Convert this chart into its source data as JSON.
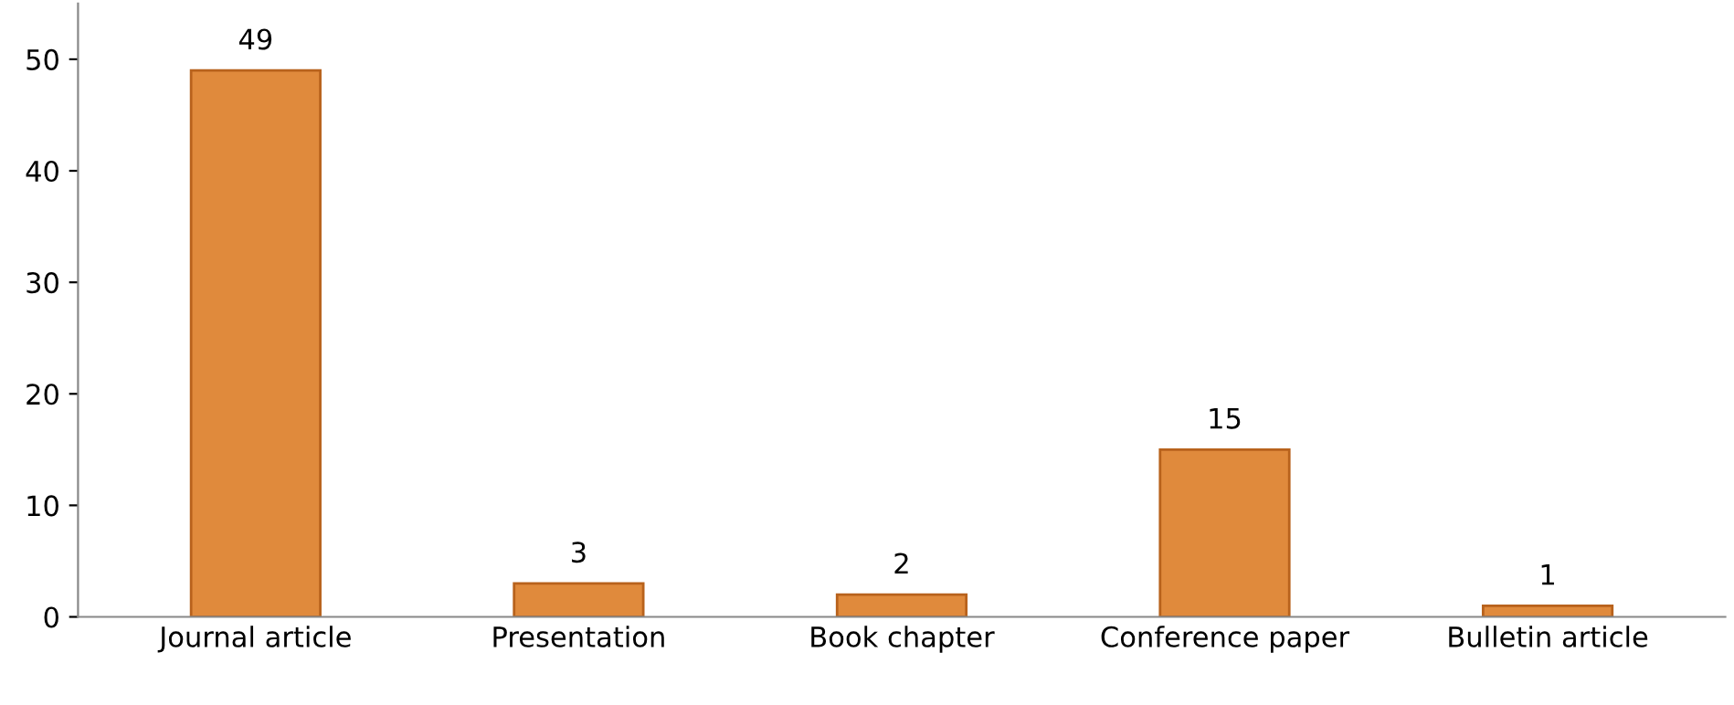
{
  "chart_data": {
    "type": "bar",
    "categories": [
      "Journal article",
      "Presentation",
      "Book chapter",
      "Conference paper",
      "Bulletin article"
    ],
    "values": [
      49,
      3,
      2,
      15,
      1
    ],
    "color": "#e08a3c",
    "ylim": [
      0,
      55
    ],
    "yticks": [
      0,
      10,
      20,
      30,
      40,
      50
    ],
    "grid": false,
    "data_labels": true
  }
}
